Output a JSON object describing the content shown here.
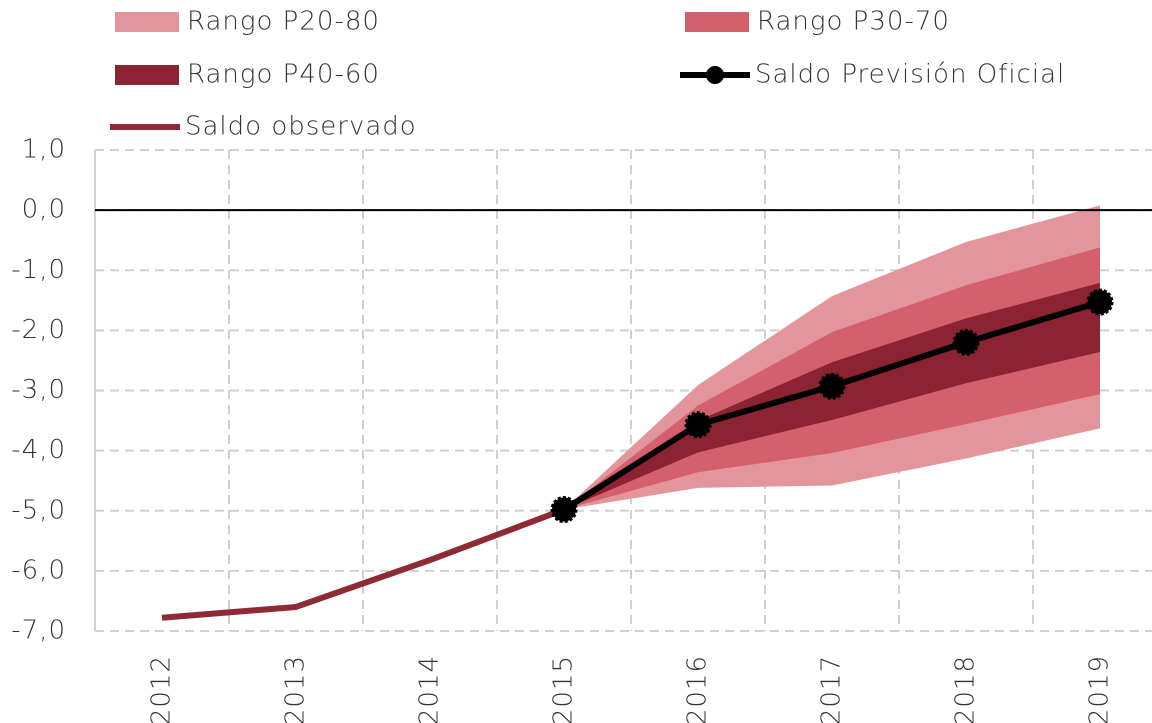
{
  "chart_data": {
    "type": "fan",
    "categories": [
      "2012",
      "2013",
      "2014",
      "2015",
      "2016",
      "2017",
      "2018",
      "2019"
    ],
    "bands": [
      {
        "name": "Rango P20-80",
        "color": "#e3959c",
        "low": [
          null,
          null,
          null,
          -4.98,
          -4.62,
          -4.58,
          -4.13,
          -3.63
        ],
        "high": [
          null,
          null,
          null,
          -4.98,
          -2.91,
          -1.43,
          -0.53,
          0.08
        ]
      },
      {
        "name": "Rango P30-70",
        "color": "#d4606d",
        "low": [
          null,
          null,
          null,
          -4.98,
          -4.36,
          -4.04,
          -3.56,
          -3.06
        ],
        "high": [
          null,
          null,
          null,
          -4.98,
          -3.25,
          -2.03,
          -1.25,
          -0.62
        ]
      },
      {
        "name": "Rango P40-60",
        "color": "#8b2332",
        "low": [
          null,
          null,
          null,
          -4.98,
          -4.03,
          -3.49,
          -2.88,
          -2.36
        ],
        "high": [
          null,
          null,
          null,
          -4.98,
          -3.5,
          -2.53,
          -1.8,
          -1.21
        ]
      }
    ],
    "series": [
      {
        "name": "Saldo Previsión Oficial",
        "color": "#000000",
        "markers": true,
        "values": [
          null,
          null,
          null,
          -4.98,
          -3.57,
          -2.93,
          -2.2,
          -1.53
        ]
      },
      {
        "name": "Saldo observado",
        "color": "#8e2a35",
        "markers": false,
        "values": [
          -6.78,
          -6.6,
          -5.82,
          -4.98,
          null,
          null,
          null,
          null
        ]
      }
    ],
    "ylim": [
      -7,
      1
    ],
    "yticks": [
      {
        "value": -7,
        "label": "-7,0"
      },
      {
        "value": -6,
        "label": "-6,0"
      },
      {
        "value": -5,
        "label": "-5,0"
      },
      {
        "value": -4,
        "label": "-4,0"
      },
      {
        "value": -3,
        "label": "-3,0"
      },
      {
        "value": -2,
        "label": "-2,0"
      },
      {
        "value": -1,
        "label": "-1,0"
      },
      {
        "value": 0,
        "label": "0,0"
      },
      {
        "value": 1,
        "label": "1,0"
      }
    ],
    "grid": true
  }
}
